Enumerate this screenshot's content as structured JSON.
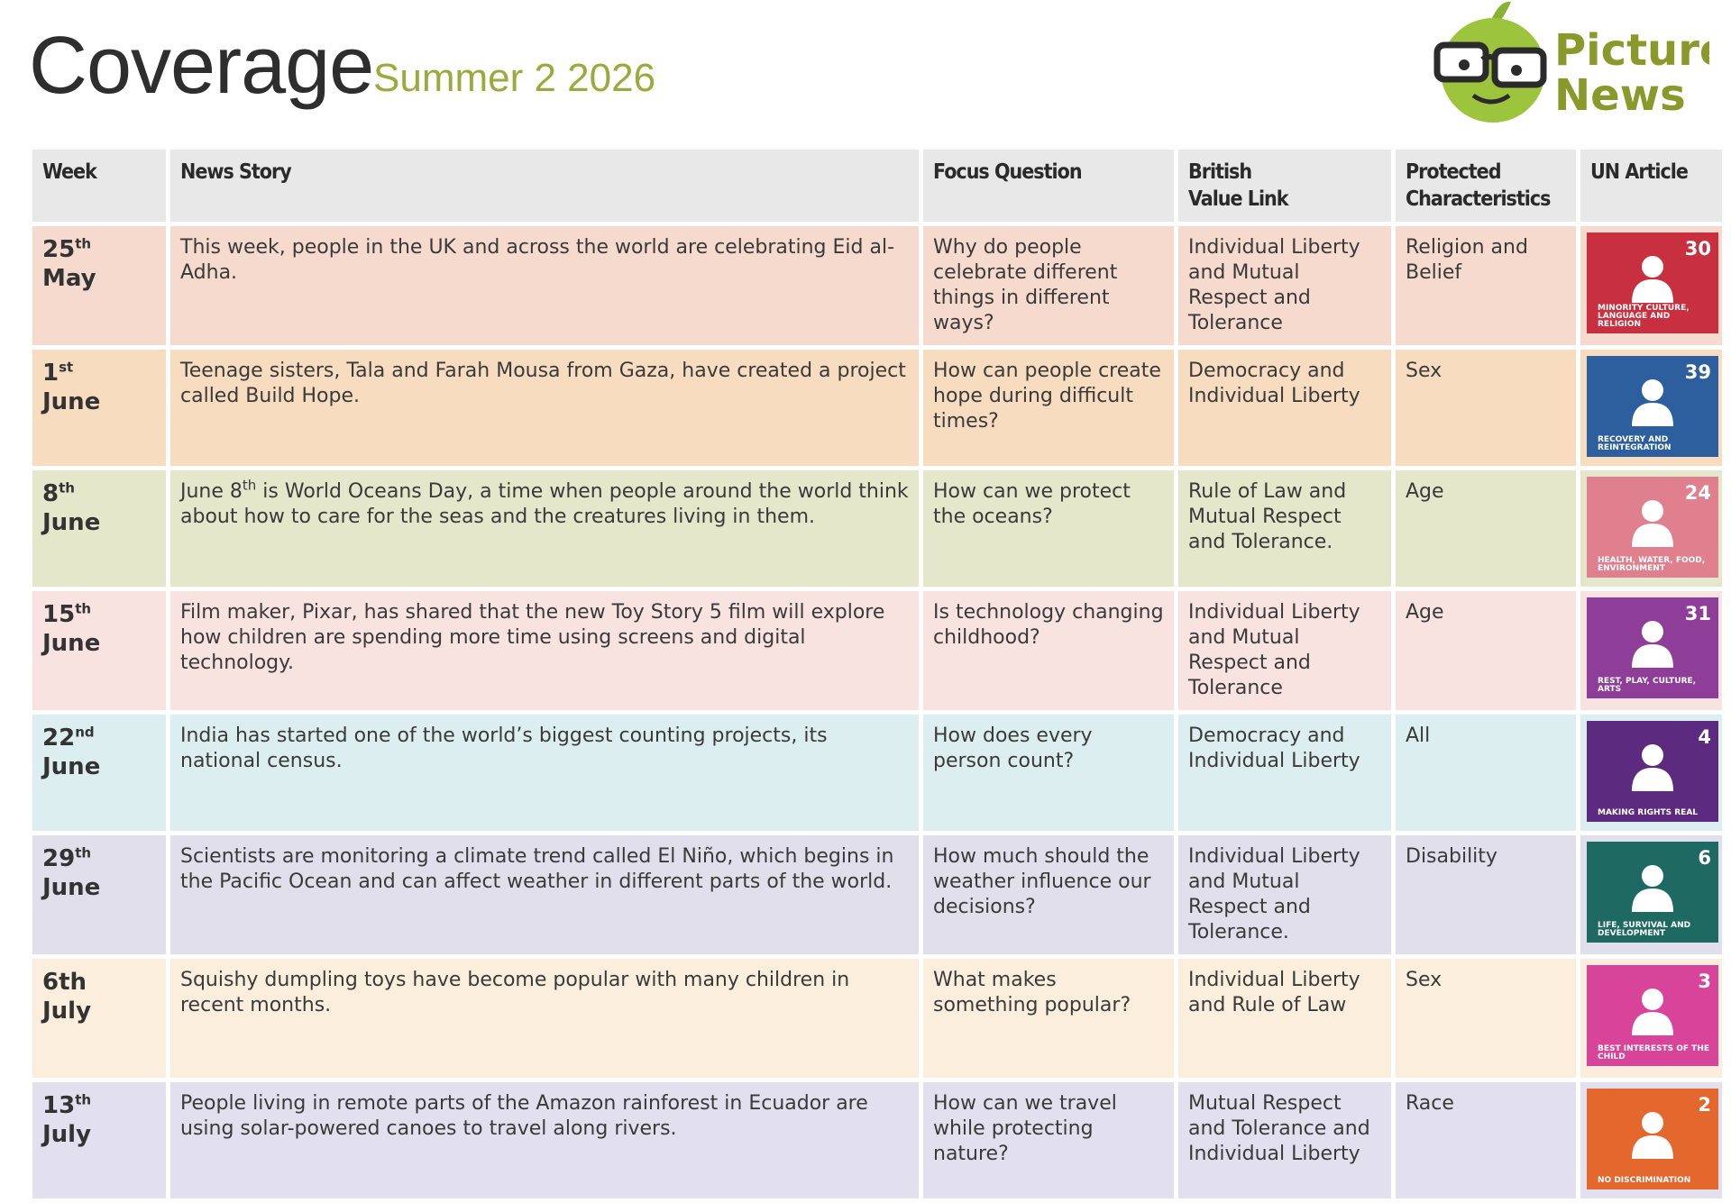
{
  "header": {
    "title": "Coverage",
    "subtitle": "Summer 2 2026",
    "logo": [
      "Picture",
      "News"
    ]
  },
  "table": {
    "columns": [
      [
        "Week"
      ],
      [
        "News Story"
      ],
      [
        "Focus Question"
      ],
      [
        "British",
        "Value Link"
      ],
      [
        "Protected",
        "Characteristics"
      ],
      [
        "UN Article"
      ]
    ],
    "rows": [
      {
        "color": "#f6dace",
        "week": {
          "day": "25",
          "suffix": "th",
          "month": "May"
        },
        "story": [
          "This week, people in the UK and across the world are celebrating Eid al-Adha."
        ],
        "question": "Why do people celebrate different things in different ways?",
        "value": "Individual Liberty and Mutual Respect and Tolerance",
        "characteristic": "Religion and Belief",
        "article": {
          "number": "30",
          "caption": "MINORITY CULTURE, LANGUAGE AND RELIGION",
          "color": "#c8303f"
        }
      },
      {
        "color": "#f8dcc0",
        "week": {
          "day": "1",
          "suffix": "st",
          "month": "June"
        },
        "story": [
          "Teenage sisters, Tala and Farah Mousa from Gaza, have created a project called Build Hope."
        ],
        "question": "How can people create hope during difficult times?",
        "value": "Democracy and Individual Liberty",
        "characteristic": "Sex",
        "article": {
          "number": "39",
          "caption": "RECOVERY AND REINTEGRATION",
          "color": "#2d5f9e"
        }
      },
      {
        "color": "#e4e7ca",
        "week": {
          "day": "8",
          "suffix": "th",
          "month": "June"
        },
        "story": [
          "June 8",
          "th",
          " is World Oceans Day, a time when people around the world think about how to care for the seas and the creatures living in them."
        ],
        "question": "How can we protect the oceans?",
        "value": "Rule of Law and Mutual Respect and Tolerance.",
        "characteristic": "Age",
        "article": {
          "number": "24",
          "caption": "HEALTH, WATER, FOOD, ENVIRONMENT",
          "color": "#e07f8d"
        }
      },
      {
        "color": "#f9e3e1",
        "week": {
          "day": "15",
          "suffix": "th",
          "month": "June"
        },
        "story": [
          "Film maker, Pixar, has shared that the new Toy Story 5 film will explore how children are spending more time using screens and digital technology."
        ],
        "question": "Is technology changing childhood?",
        "value": "Individual Liberty and Mutual Respect and Tolerance",
        "characteristic": "Age",
        "article": {
          "number": "31",
          "caption": "REST, PLAY, CULTURE, ARTS",
          "color": "#8e3d99"
        }
      },
      {
        "color": "#ddeef1",
        "week": {
          "day": "22",
          "suffix": "nd",
          "month": "June"
        },
        "story": [
          "India has started one of the world’s biggest counting projects, its national census."
        ],
        "question": "How does every person count?",
        "value": "Democracy and Individual Liberty",
        "characteristic": "All",
        "article": {
          "number": "4",
          "caption": "MAKING RIGHTS REAL",
          "color": "#5c2a7e"
        }
      },
      {
        "color": "#e2dfec",
        "week": {
          "day": "29",
          "suffix": "th",
          "month": "June"
        },
        "story": [
          "Scientists are monitoring a climate trend called El Niño, which begins in the Pacific Ocean and can affect weather in different parts of the world."
        ],
        "question": "How much should the weather influence our decisions?",
        "value": "Individual Liberty and Mutual Respect and Tolerance.",
        "characteristic": "Disability",
        "article": {
          "number": "6",
          "caption": "LIFE, SURVIVAL AND DEVELOPMENT",
          "color": "#1e6a63"
        }
      },
      {
        "color": "#fbeedd",
        "week": {
          "day": "6th",
          "month": "July"
        },
        "story": [
          "Squishy dumpling toys have become popular with many children in recent months."
        ],
        "question": "What makes something popular?",
        "value": "Individual Liberty and Rule of Law",
        "characteristic": "Sex",
        "article": {
          "number": "3",
          "caption": "BEST INTERESTS OF THE CHILD",
          "color": "#d8449a"
        }
      },
      {
        "color": "#e2dfee",
        "week": {
          "day": "13",
          "suffix": "th",
          "month": "July"
        },
        "story": [
          "People living in remote parts of the Amazon rainforest in Ecuador are using solar-powered canoes to travel along rivers."
        ],
        "question": "How can we travel while protecting nature?",
        "value": "Mutual Respect and Tolerance and Individual Liberty",
        "characteristic": "Race",
        "article": {
          "number": "2",
          "caption": "NO DISCRIMINATION",
          "color": "#e4672d"
        }
      }
    ]
  }
}
